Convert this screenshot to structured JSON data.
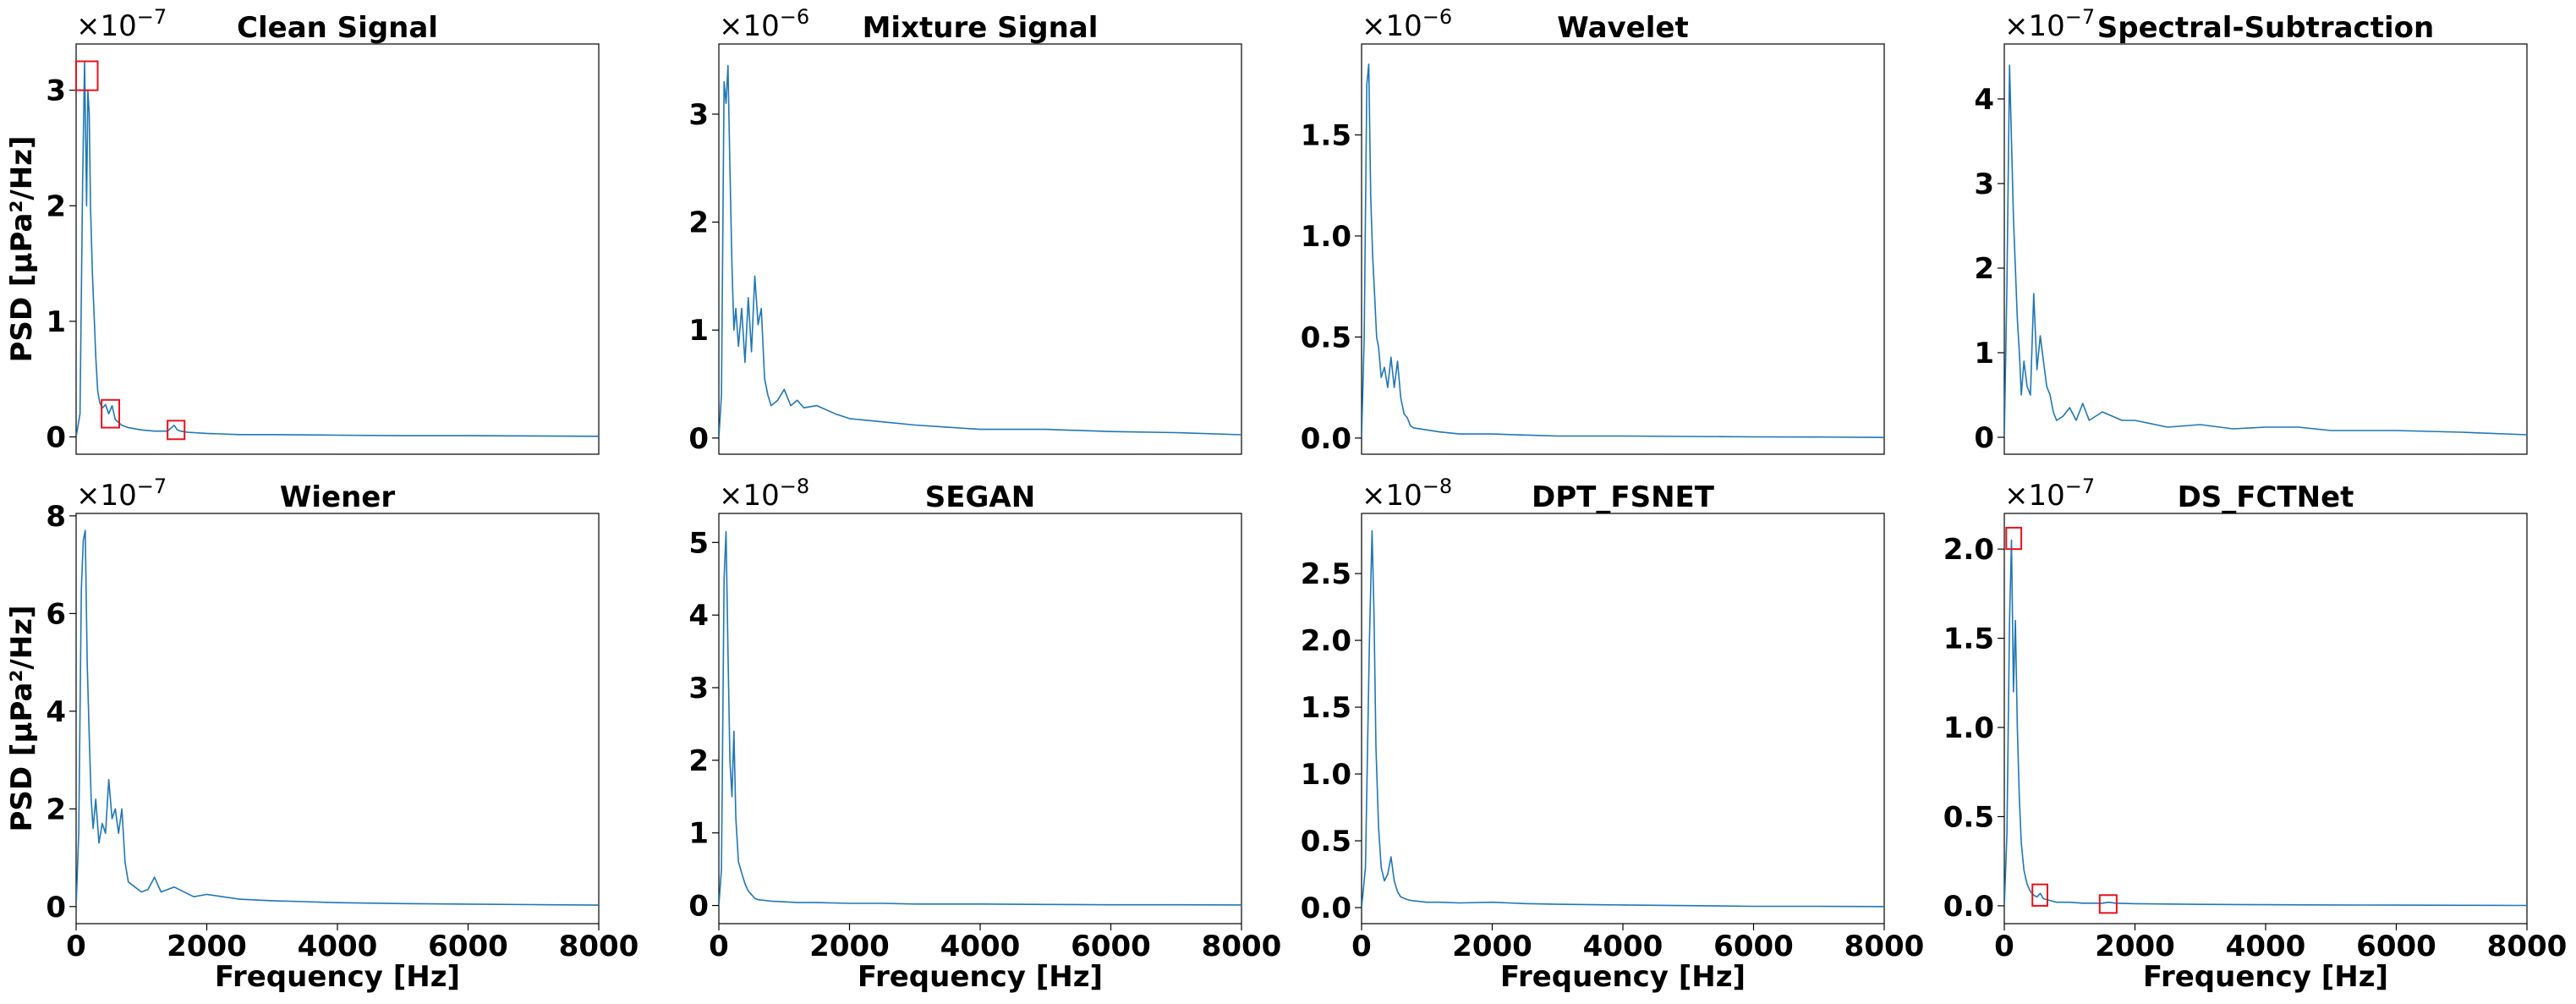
{
  "chart_data": [
    {
      "type": "line",
      "title": "Clean Signal",
      "xlabel": "",
      "ylabel": "PSD [μPa²/Hz]",
      "offset_text": "×10",
      "offset_exponent": "−7",
      "xlim": [
        0,
        8000
      ],
      "ylim": [
        -0.15,
        3.4
      ],
      "yticks": [
        0,
        1,
        2,
        3
      ],
      "ytick_labels": [
        "0",
        "1",
        "2",
        "3"
      ],
      "xticks": [],
      "xtick_labels": [],
      "series": [
        {
          "name": "PSD",
          "color": "#1f77b4",
          "x": [
            0,
            60,
            100,
            130,
            160,
            180,
            200,
            220,
            250,
            280,
            300,
            330,
            360,
            400,
            450,
            500,
            550,
            600,
            700,
            800,
            1000,
            1200,
            1400,
            1500,
            1550,
            1600,
            1700,
            2000,
            2500,
            3000,
            4000,
            5000,
            6000,
            7000,
            8000
          ],
          "y": [
            0,
            0.2,
            2.2,
            3.25,
            2.0,
            3.0,
            2.8,
            2.0,
            1.4,
            1.0,
            0.7,
            0.4,
            0.3,
            0.25,
            0.28,
            0.2,
            0.27,
            0.15,
            0.1,
            0.08,
            0.06,
            0.05,
            0.05,
            0.1,
            0.06,
            0.05,
            0.04,
            0.03,
            0.02,
            0.02,
            0.015,
            0.01,
            0.01,
            0.008,
            0.005
          ]
        }
      ],
      "annotations": [
        {
          "type": "box",
          "x0": 0,
          "x1": 330,
          "y0": 3.0,
          "y1": 3.25
        },
        {
          "type": "box",
          "x0": 390,
          "x1": 660,
          "y0": 0.08,
          "y1": 0.32
        },
        {
          "type": "box",
          "x0": 1400,
          "x1": 1660,
          "y0": -0.02,
          "y1": 0.14
        }
      ]
    },
    {
      "type": "line",
      "title": "Mixture Signal",
      "xlabel": "",
      "ylabel": "",
      "offset_text": "×10",
      "offset_exponent": "−6",
      "xlim": [
        0,
        8000
      ],
      "ylim": [
        -0.15,
        3.65
      ],
      "yticks": [
        0,
        1,
        2,
        3
      ],
      "ytick_labels": [
        "0",
        "1",
        "2",
        "3"
      ],
      "xticks": [],
      "xtick_labels": [],
      "series": [
        {
          "name": "PSD",
          "color": "#1f77b4",
          "x": [
            0,
            40,
            80,
            110,
            140,
            170,
            200,
            230,
            260,
            300,
            350,
            400,
            450,
            500,
            550,
            600,
            650,
            700,
            750,
            800,
            900,
            1000,
            1100,
            1200,
            1300,
            1500,
            1800,
            2000,
            2500,
            3000,
            3500,
            4000,
            5000,
            6000,
            7000,
            8000
          ],
          "y": [
            0,
            0.4,
            3.3,
            3.1,
            3.45,
            2.5,
            1.6,
            1.0,
            1.2,
            0.85,
            1.2,
            0.7,
            1.3,
            0.8,
            1.5,
            1.05,
            1.2,
            0.55,
            0.4,
            0.3,
            0.35,
            0.45,
            0.3,
            0.35,
            0.28,
            0.3,
            0.22,
            0.18,
            0.15,
            0.12,
            0.1,
            0.08,
            0.08,
            0.06,
            0.05,
            0.03
          ]
        }
      ]
    },
    {
      "type": "line",
      "title": "Wavelet",
      "xlabel": "",
      "ylabel": "",
      "offset_text": "×10",
      "offset_exponent": "−6",
      "xlim": [
        0,
        8000
      ],
      "ylim": [
        -0.08,
        1.95
      ],
      "yticks": [
        0,
        0.5,
        1.0,
        1.5
      ],
      "ytick_labels": [
        "0.0",
        "0.5",
        "1.0",
        "1.5"
      ],
      "xticks": [],
      "xtick_labels": [],
      "series": [
        {
          "name": "PSD",
          "color": "#1f77b4",
          "x": [
            0,
            40,
            80,
            110,
            140,
            170,
            200,
            230,
            260,
            300,
            350,
            400,
            450,
            500,
            550,
            600,
            650,
            700,
            750,
            800,
            1000,
            1200,
            1500,
            2000,
            2500,
            3000,
            4000,
            5000,
            6000,
            7000,
            8000
          ],
          "y": [
            0,
            0.5,
            1.75,
            1.85,
            1.2,
            0.9,
            0.7,
            0.5,
            0.45,
            0.3,
            0.35,
            0.25,
            0.4,
            0.25,
            0.38,
            0.2,
            0.12,
            0.1,
            0.06,
            0.05,
            0.04,
            0.03,
            0.02,
            0.02,
            0.015,
            0.01,
            0.01,
            0.008,
            0.006,
            0.005,
            0.003
          ]
        }
      ]
    },
    {
      "type": "line",
      "title": "Spectral-Subtraction",
      "xlabel": "",
      "ylabel": "",
      "offset_text": "×10",
      "offset_exponent": "−7",
      "xlim": [
        0,
        8000
      ],
      "ylim": [
        -0.2,
        4.65
      ],
      "yticks": [
        0,
        1,
        2,
        3,
        4
      ],
      "ytick_labels": [
        "0",
        "1",
        "2",
        "3",
        "4"
      ],
      "xticks": [],
      "xtick_labels": [],
      "series": [
        {
          "name": "PSD",
          "color": "#1f77b4",
          "x": [
            0,
            40,
            80,
            110,
            140,
            170,
            200,
            230,
            260,
            300,
            350,
            400,
            450,
            500,
            550,
            600,
            650,
            700,
            750,
            800,
            900,
            1000,
            1100,
            1200,
            1300,
            1500,
            1800,
            2000,
            2500,
            3000,
            3500,
            4000,
            4500,
            5000,
            6000,
            7000,
            8000
          ],
          "y": [
            0,
            1.8,
            4.4,
            3.5,
            2.6,
            2.0,
            1.4,
            1.0,
            0.5,
            0.9,
            0.6,
            0.5,
            1.7,
            0.8,
            1.2,
            0.9,
            0.6,
            0.5,
            0.3,
            0.2,
            0.25,
            0.35,
            0.2,
            0.4,
            0.2,
            0.3,
            0.2,
            0.2,
            0.12,
            0.15,
            0.1,
            0.12,
            0.12,
            0.08,
            0.08,
            0.06,
            0.03
          ]
        }
      ]
    },
    {
      "type": "line",
      "title": "Wiener",
      "xlabel": "Frequency [Hz]",
      "ylabel": "PSD [μPa²/Hz]",
      "offset_text": "×10",
      "offset_exponent": "−7",
      "xlim": [
        0,
        8000
      ],
      "ylim": [
        -0.35,
        8.05
      ],
      "yticks": [
        0,
        2,
        4,
        6,
        8
      ],
      "ytick_labels": [
        "0",
        "2",
        "4",
        "6",
        "8"
      ],
      "xticks": [
        0,
        2000,
        4000,
        6000,
        8000
      ],
      "xtick_labels": [
        "0",
        "2000",
        "4000",
        "6000",
        "8000"
      ],
      "series": [
        {
          "name": "PSD",
          "color": "#1f77b4",
          "x": [
            0,
            40,
            80,
            110,
            140,
            170,
            200,
            230,
            260,
            300,
            350,
            400,
            450,
            500,
            550,
            600,
            650,
            700,
            750,
            800,
            900,
            1000,
            1100,
            1200,
            1300,
            1500,
            1800,
            2000,
            2500,
            3000,
            3500,
            4000,
            5000,
            6000,
            7000,
            8000
          ],
          "y": [
            0,
            1.5,
            6.5,
            7.5,
            7.7,
            5.0,
            3.5,
            2.2,
            1.6,
            2.2,
            1.3,
            1.7,
            1.5,
            2.6,
            1.8,
            2.0,
            1.5,
            2.0,
            0.9,
            0.5,
            0.4,
            0.3,
            0.35,
            0.6,
            0.3,
            0.4,
            0.2,
            0.25,
            0.15,
            0.12,
            0.1,
            0.08,
            0.06,
            0.05,
            0.04,
            0.03
          ]
        }
      ]
    },
    {
      "type": "line",
      "title": "SEGAN",
      "xlabel": "Frequency [Hz]",
      "ylabel": "",
      "offset_text": "×10",
      "offset_exponent": "−8",
      "xlim": [
        0,
        8000
      ],
      "ylim": [
        -0.25,
        5.4
      ],
      "yticks": [
        0,
        1,
        2,
        3,
        4,
        5
      ],
      "ytick_labels": [
        "0",
        "1",
        "2",
        "3",
        "4",
        "5"
      ],
      "xticks": [
        0,
        2000,
        4000,
        6000,
        8000
      ],
      "xtick_labels": [
        "0",
        "2000",
        "4000",
        "6000",
        "8000"
      ],
      "series": [
        {
          "name": "PSD",
          "color": "#1f77b4",
          "x": [
            0,
            40,
            80,
            110,
            140,
            170,
            200,
            230,
            260,
            300,
            350,
            400,
            450,
            500,
            550,
            600,
            700,
            800,
            1000,
            1200,
            1500,
            2000,
            2500,
            3000,
            4000,
            5000,
            6000,
            7000,
            8000
          ],
          "y": [
            0,
            0.5,
            4.5,
            5.15,
            3.5,
            2.0,
            1.5,
            2.4,
            1.2,
            0.6,
            0.45,
            0.3,
            0.2,
            0.15,
            0.1,
            0.08,
            0.07,
            0.06,
            0.05,
            0.04,
            0.04,
            0.03,
            0.03,
            0.02,
            0.02,
            0.015,
            0.01,
            0.01,
            0.008
          ]
        }
      ]
    },
    {
      "type": "line",
      "title": "DPT_FSNET",
      "xlabel": "Frequency [Hz]",
      "ylabel": "",
      "offset_text": "×10",
      "offset_exponent": "−8",
      "xlim": [
        0,
        8000
      ],
      "ylim": [
        -0.12,
        2.95
      ],
      "yticks": [
        0,
        0.5,
        1.0,
        1.5,
        2.0,
        2.5
      ],
      "ytick_labels": [
        "0.0",
        "0.5",
        "1.0",
        "1.5",
        "2.0",
        "2.5"
      ],
      "xticks": [
        0,
        2000,
        4000,
        6000,
        8000
      ],
      "xtick_labels": [
        "0",
        "2000",
        "4000",
        "6000",
        "8000"
      ],
      "series": [
        {
          "name": "PSD",
          "color": "#1f77b4",
          "x": [
            0,
            60,
            120,
            160,
            190,
            220,
            260,
            300,
            350,
            400,
            450,
            500,
            550,
            600,
            700,
            800,
            1000,
            1200,
            1500,
            2000,
            2500,
            3000,
            4000,
            5000,
            6000,
            7000,
            8000
          ],
          "y": [
            0,
            0.3,
            2.0,
            2.82,
            2.2,
            1.2,
            0.6,
            0.3,
            0.2,
            0.25,
            0.38,
            0.2,
            0.12,
            0.08,
            0.06,
            0.05,
            0.04,
            0.04,
            0.035,
            0.04,
            0.03,
            0.025,
            0.02,
            0.015,
            0.01,
            0.01,
            0.008
          ]
        }
      ]
    },
    {
      "type": "line",
      "title": "DS_FCTNet",
      "xlabel": "Frequency [Hz]",
      "ylabel": "",
      "offset_text": "×10",
      "offset_exponent": "−7",
      "xlim": [
        0,
        8000
      ],
      "ylim": [
        -0.1,
        2.2
      ],
      "yticks": [
        0,
        0.5,
        1.0,
        1.5,
        2.0
      ],
      "ytick_labels": [
        "0.0",
        "0.5",
        "1.0",
        "1.5",
        "2.0"
      ],
      "xticks": [
        0,
        2000,
        4000,
        6000,
        8000
      ],
      "xtick_labels": [
        "0",
        "2000",
        "4000",
        "6000",
        "8000"
      ],
      "series": [
        {
          "name": "PSD",
          "color": "#1f77b4",
          "x": [
            0,
            40,
            80,
            110,
            140,
            170,
            200,
            230,
            260,
            300,
            350,
            400,
            450,
            500,
            550,
            600,
            700,
            800,
            1000,
            1200,
            1500,
            1600,
            1700,
            2000,
            2500,
            3000,
            4000,
            5000,
            6000,
            7000,
            8000
          ],
          "y": [
            0,
            0.4,
            1.6,
            2.05,
            1.2,
            1.6,
            1.0,
            0.6,
            0.35,
            0.2,
            0.12,
            0.08,
            0.06,
            0.05,
            0.07,
            0.04,
            0.03,
            0.02,
            0.02,
            0.015,
            0.015,
            0.02,
            0.015,
            0.012,
            0.01,
            0.008,
            0.006,
            0.005,
            0.004,
            0.003,
            0.002
          ]
        }
      ],
      "annotations": [
        {
          "type": "box",
          "x0": 30,
          "x1": 260,
          "y0": 2.0,
          "y1": 2.12
        },
        {
          "type": "box",
          "x0": 430,
          "x1": 660,
          "y0": 0.0,
          "y1": 0.12
        },
        {
          "type": "box",
          "x0": 1460,
          "x1": 1720,
          "y0": -0.04,
          "y1": 0.06
        }
      ]
    }
  ]
}
